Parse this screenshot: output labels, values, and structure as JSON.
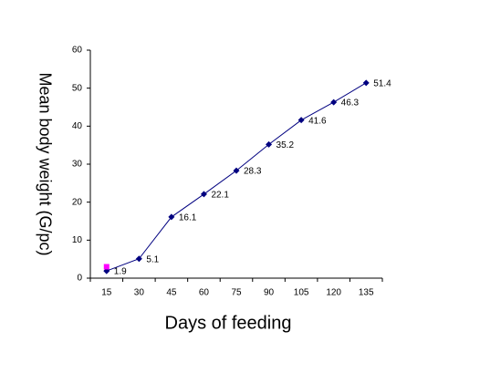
{
  "chart_data": {
    "type": "line",
    "x_label": "Days of feeding",
    "y_label": "Mean body weight (G/pc)",
    "categories": [
      "15",
      "30",
      "45",
      "60",
      "75",
      "90",
      "105",
      "120",
      "135"
    ],
    "series": [
      {
        "color": "#000080",
        "values": [
          1.9,
          5.1,
          16.1,
          22.1,
          28.3,
          35.2,
          41.6,
          46.3,
          51.4
        ]
      },
      {
        "color": "#ff00ff",
        "values": [
          3,
          null,
          null,
          null,
          null,
          null,
          null,
          null,
          null
        ]
      }
    ],
    "ylim": [
      0,
      60
    ],
    "yticks": [
      0,
      10,
      20,
      30,
      40,
      50,
      60
    ]
  }
}
